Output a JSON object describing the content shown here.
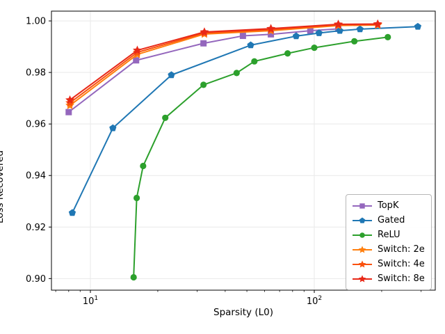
{
  "chart_data": {
    "type": "line",
    "title": "",
    "xlabel": "Sparsity (L0)",
    "ylabel": "Loss Recovered",
    "x_scale": "log",
    "xlim": [
      6.7,
      347
    ],
    "ylim": [
      0.8955,
      1.0038
    ],
    "grid": true,
    "grid_color": "#e9e9e9",
    "spine_color": "#000000",
    "background": "#ffffff",
    "legend_position": "lower right",
    "y_ticks": [
      {
        "v": 1.0,
        "label": "1.00"
      },
      {
        "v": 0.98,
        "label": "0.98"
      },
      {
        "v": 0.96,
        "label": "0.96"
      },
      {
        "v": 0.94,
        "label": "0.94"
      },
      {
        "v": 0.92,
        "label": "0.92"
      },
      {
        "v": 0.9,
        "label": "0.90"
      }
    ],
    "x_major_ticks": [
      {
        "v": 10,
        "base": "10",
        "exp": "1"
      },
      {
        "v": 100,
        "base": "10",
        "exp": "2"
      }
    ],
    "x_minor_ticks": [
      7,
      8,
      9,
      20,
      30,
      40,
      50,
      60,
      70,
      80,
      90,
      200,
      300
    ],
    "series": [
      {
        "name": "TopK",
        "color": "#9467bd",
        "marker": "square",
        "x": [
          8,
          16,
          32,
          48,
          64,
          96,
          128
        ],
        "y": [
          0.9646,
          0.9847,
          0.9913,
          0.9942,
          0.9948,
          0.9962,
          0.9969
        ]
      },
      {
        "name": "Gated",
        "color": "#1f77b4",
        "marker": "pentagon",
        "x": [
          8.3,
          12.6,
          23,
          52,
          83,
          105,
          130,
          160,
          290
        ],
        "y": [
          0.9255,
          0.9584,
          0.979,
          0.9906,
          0.9941,
          0.9953,
          0.9962,
          0.9968,
          0.9978
        ]
      },
      {
        "name": "ReLU",
        "color": "#2ca02c",
        "marker": "circle",
        "x": [
          15.6,
          16.1,
          17.2,
          21.6,
          32,
          45,
          54,
          76,
          100,
          151,
          213
        ],
        "y": [
          0.9005,
          0.9313,
          0.9437,
          0.9624,
          0.9752,
          0.9798,
          0.9843,
          0.9874,
          0.9896,
          0.9921,
          0.9937
        ]
      },
      {
        "name": "Switch: 2e",
        "color": "#ff7f0e",
        "marker": "star",
        "x": [
          8.1,
          16.2,
          32.3,
          64,
          128,
          192
        ],
        "y": [
          0.9672,
          0.987,
          0.9949,
          0.9962,
          0.9982,
          0.9984
        ]
      },
      {
        "name": "Switch: 4e",
        "color": "#fa510e",
        "marker": "star",
        "x": [
          8.1,
          16.2,
          32.3,
          64,
          128,
          192
        ],
        "y": [
          0.9682,
          0.9878,
          0.9953,
          0.9966,
          0.9985,
          0.9986
        ]
      },
      {
        "name": "Switch: 8e",
        "color": "#e82817",
        "marker": "star",
        "x": [
          8.1,
          16.2,
          32.3,
          64,
          128,
          192
        ],
        "y": [
          0.9693,
          0.9886,
          0.9957,
          0.997,
          0.9987,
          0.9988
        ]
      }
    ]
  }
}
